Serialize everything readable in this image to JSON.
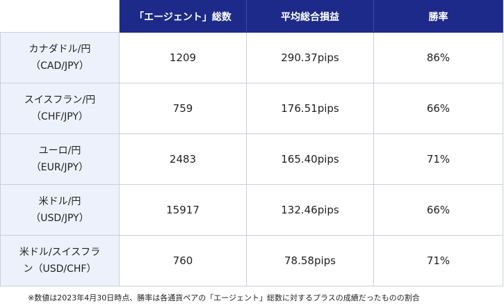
{
  "header": {
    "col1": "",
    "col2": "「エージェント」総数",
    "col3": "平均総合損益",
    "col4": "勝率"
  },
  "rows": [
    {
      "pair_line1": "カナダドル/円",
      "pair_line2": "（CAD/JPY）",
      "agents": "1209",
      "pl": "290.37pips",
      "win": "86%"
    },
    {
      "pair_line1": "スイスフラン/円",
      "pair_line2": "（CHF/JPY）",
      "agents": "759",
      "pl": "176.51pips",
      "win": "66%"
    },
    {
      "pair_line1": "ユーロ/円",
      "pair_line2": "（EUR/JPY）",
      "agents": "2483",
      "pl": "165.40pips",
      "win": "71%"
    },
    {
      "pair_line1": "米ドル/円",
      "pair_line2": "（USD/JPY）",
      "agents": "15917",
      "pl": "132.46pips",
      "win": "66%"
    },
    {
      "pair_line1": "米ドル/スイスフラ",
      "pair_line2": "ン（USD/CHF）",
      "agents": "760",
      "pl": "78.58pips",
      "win": "71%"
    }
  ],
  "footnote": "※数値は2023年4月30日時点、勝率は各通貨ペアの「エージェント」総数に対するプラスの成績だったものの割合",
  "colors": {
    "header_bg": "#1d2a8a",
    "pair_bg": "#edf1fb",
    "border": "#c8ced8"
  }
}
